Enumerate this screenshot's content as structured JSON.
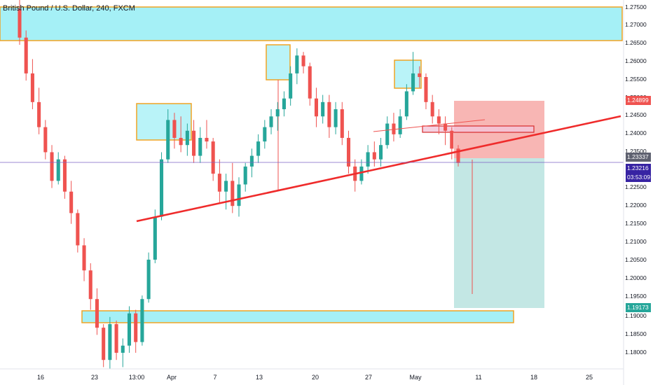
{
  "chart_title": "British Pound / U.S. Dollar, 240, FXCM",
  "colors": {
    "up": "#26a69a",
    "down": "#ef5350",
    "zone_fill": "#7fe9f2",
    "zone_border": "#f0a424",
    "trendline": "#ef2b2b",
    "stop_fill": "#f7a9a7",
    "target_fill": "#b9e3df",
    "price_line": "#7b61c5",
    "entry_badge": "#5e6170",
    "current_badge": "#3723a3",
    "target_badge": "#26a69a",
    "stop_badge": "#ef5350"
  },
  "price_axis": {
    "labels": [
      "1.27500",
      "1.27000",
      "1.26500",
      "1.26000",
      "1.25500",
      "1.25000",
      "1.24500",
      "1.24000",
      "1.23500",
      "1.22500",
      "1.22000",
      "1.21500",
      "1.21000",
      "1.20500",
      "1.20000",
      "1.19500",
      "1.19000",
      "1.18500",
      "1.18000"
    ]
  },
  "price_badges": {
    "stop": "1.24899",
    "entry": "1.23337",
    "current_price": "1.23216",
    "countdown": "03:53:09",
    "target": "1.19173"
  },
  "time_axis": {
    "labels": [
      "16",
      "23",
      "13:00",
      "Apr",
      "7",
      "13",
      "20",
      "27",
      "May",
      "11",
      "18",
      "25"
    ]
  },
  "chart_data": {
    "type": "candlestick",
    "symbol": "GBPUSD",
    "timeframe": "240",
    "y_range": [
      1.1755,
      1.2785
    ],
    "candles": [
      [
        1.276,
        1.2785,
        1.266,
        1.268
      ],
      [
        1.268,
        1.27,
        1.256,
        1.258
      ],
      [
        1.258,
        1.262,
        1.248,
        1.25
      ],
      [
        1.25,
        1.254,
        1.241,
        1.243
      ],
      [
        1.243,
        1.245,
        1.234,
        1.236
      ],
      [
        1.236,
        1.238,
        1.226,
        1.228
      ],
      [
        1.228,
        1.236,
        1.227,
        1.234
      ],
      [
        1.234,
        1.235,
        1.223,
        1.225
      ],
      [
        1.225,
        1.228,
        1.216,
        1.219
      ],
      [
        1.219,
        1.22,
        1.208,
        1.21
      ],
      [
        1.21,
        1.212,
        1.2,
        1.203
      ],
      [
        1.203,
        1.205,
        1.192,
        1.195
      ],
      [
        1.195,
        1.198,
        1.185,
        1.187
      ],
      [
        1.187,
        1.188,
        1.176,
        1.178
      ],
      [
        1.178,
        1.19,
        1.1755,
        1.188
      ],
      [
        1.188,
        1.189,
        1.178,
        1.18
      ],
      [
        1.18,
        1.184,
        1.176,
        1.182
      ],
      [
        1.182,
        1.193,
        1.18,
        1.191
      ],
      [
        1.191,
        1.192,
        1.18,
        1.183
      ],
      [
        1.183,
        1.196,
        1.182,
        1.195
      ],
      [
        1.195,
        1.208,
        1.194,
        1.206
      ],
      [
        1.206,
        1.22,
        1.205,
        1.218
      ],
      [
        1.218,
        1.236,
        1.217,
        1.234
      ],
      [
        1.234,
        1.248,
        1.233,
        1.245
      ],
      [
        1.245,
        1.247,
        1.237,
        1.24
      ],
      [
        1.24,
        1.246,
        1.236,
        1.238
      ],
      [
        1.238,
        1.244,
        1.235,
        1.242
      ],
      [
        1.242,
        1.245,
        1.233,
        1.235
      ],
      [
        1.235,
        1.243,
        1.233,
        1.24
      ],
      [
        1.24,
        1.245,
        1.237,
        1.239
      ],
      [
        1.239,
        1.24,
        1.228,
        1.23
      ],
      [
        1.23,
        1.234,
        1.222,
        1.225
      ],
      [
        1.225,
        1.23,
        1.22,
        1.228
      ],
      [
        1.228,
        1.233,
        1.219,
        1.221
      ],
      [
        1.221,
        1.229,
        1.218,
        1.227
      ],
      [
        1.227,
        1.233,
        1.225,
        1.232
      ],
      [
        1.232,
        1.237,
        1.229,
        1.235
      ],
      [
        1.235,
        1.241,
        1.233,
        1.239
      ],
      [
        1.239,
        1.245,
        1.237,
        1.243
      ],
      [
        1.243,
        1.248,
        1.241,
        1.246
      ],
      [
        1.246,
        1.25,
        1.242,
        1.248
      ],
      [
        1.248,
        1.253,
        1.246,
        1.251
      ],
      [
        1.251,
        1.26,
        1.249,
        1.258
      ],
      [
        1.258,
        1.265,
        1.255,
        1.263
      ],
      [
        1.263,
        1.264,
        1.258,
        1.26
      ],
      [
        1.26,
        1.261,
        1.249,
        1.251
      ],
      [
        1.251,
        1.254,
        1.243,
        1.246
      ],
      [
        1.246,
        1.252,
        1.244,
        1.25
      ],
      [
        1.25,
        1.252,
        1.24,
        1.243
      ],
      [
        1.243,
        1.25,
        1.241,
        1.248
      ],
      [
        1.248,
        1.25,
        1.238,
        1.24
      ],
      [
        1.24,
        1.242,
        1.23,
        1.232
      ],
      [
        1.232,
        1.234,
        1.225,
        1.228
      ],
      [
        1.228,
        1.234,
        1.227,
        1.232
      ],
      [
        1.232,
        1.238,
        1.23,
        1.236
      ],
      [
        1.236,
        1.239,
        1.232,
        1.234
      ],
      [
        1.234,
        1.24,
        1.232,
        1.238
      ],
      [
        1.238,
        1.246,
        1.237,
        1.244
      ],
      [
        1.244,
        1.247,
        1.239,
        1.241
      ],
      [
        1.241,
        1.248,
        1.24,
        1.246
      ],
      [
        1.246,
        1.255,
        1.245,
        1.253
      ],
      [
        1.253,
        1.264,
        1.252,
        1.258
      ],
      [
        1.258,
        1.26,
        1.254,
        1.257
      ],
      [
        1.257,
        1.258,
        1.248,
        1.25
      ],
      [
        1.25,
        1.252,
        1.244,
        1.246
      ],
      [
        1.246,
        1.248,
        1.241,
        1.244
      ],
      [
        1.244,
        1.246,
        1.238,
        1.242
      ],
      [
        1.242,
        1.243,
        1.234,
        1.237
      ],
      [
        1.237,
        1.238,
        1.232,
        1.233
      ]
    ]
  }
}
